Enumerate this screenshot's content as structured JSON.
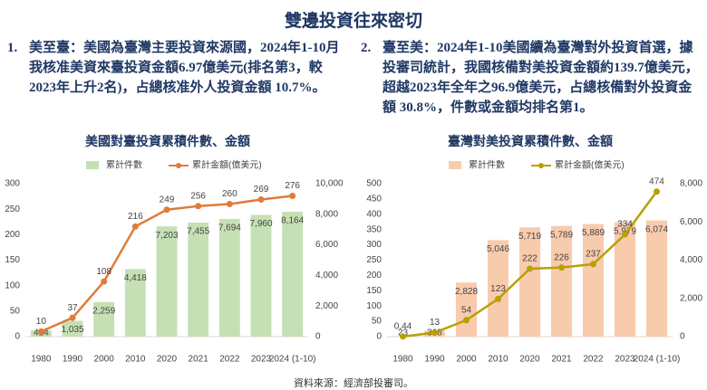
{
  "title": "雙邊投資往來密切",
  "paragraphs": [
    {
      "number": "1.",
      "text": "美至臺：美國為臺灣主要投資來源國，2024年1-10月我核准美資來臺投資金額6.97億美元(排名第3，較2023年上升2名)，占總核准外人投資金額 10.7%。"
    },
    {
      "number": "2.",
      "text": "臺至美：2024年1-10美國續為臺灣對外投資首選，據投審司統計，我國核備對美投資金額約139.7億美元，超越2023年全年之96.9億美元，占總核備對外投資金額 30.8%，件數或金額均排名第1。"
    }
  ],
  "source": "資料來源：經濟部投審司。",
  "chart_data": [
    {
      "type": "bar_line",
      "title": "美國對臺投資累積件數、金額",
      "categories": [
        "1980",
        "1990",
        "2000",
        "2010",
        "2020",
        "2021",
        "2022",
        "2023",
        "2024 (1-10)"
      ],
      "series": [
        {
          "name": "累計件數",
          "type": "bar",
          "axis": "y2",
          "color": "#c5e0b4",
          "values": [
            414,
            1035,
            2259,
            4418,
            7203,
            7455,
            7694,
            7960,
            8164
          ],
          "value_labels": [
            "414",
            "1,035",
            "2,259",
            "4,418",
            "7,203",
            "7,455",
            "7,694",
            "7,960",
            "8,164"
          ]
        },
        {
          "name": "累計金額(億美元)",
          "type": "line",
          "axis": "y",
          "color": "#e07b39",
          "values": [
            10,
            37,
            108,
            216,
            249,
            256,
            260,
            269,
            276
          ]
        }
      ],
      "ylim": [
        0,
        300
      ],
      "yticks": [
        0,
        50,
        100,
        150,
        200,
        250,
        300
      ],
      "y2lim": [
        0,
        10000
      ],
      "y2ticks": [
        0,
        {
          "value": 2000,
          "label": "2,000"
        },
        {
          "value": 4000,
          "label": "4,000"
        },
        {
          "value": 6000,
          "label": "6,000"
        },
        {
          "value": 8000,
          "label": "8,000"
        },
        {
          "value": 10000,
          "label": "10,000"
        }
      ]
    },
    {
      "type": "bar_line",
      "title": "臺灣對美投資累積件數、金額",
      "categories": [
        "1980",
        "1990",
        "2000",
        "2010",
        "2020",
        "2021",
        "2022",
        "2023",
        "2024 (1-10)"
      ],
      "series": [
        {
          "name": "累計件數",
          "type": "bar",
          "axis": "y2",
          "color": "#f8cbad",
          "values": [
            23,
            308,
            2828,
            5046,
            5719,
            5789,
            5889,
            5979,
            6074
          ],
          "value_labels": [
            "23",
            "308",
            "2,828",
            "5,046",
            "5,719",
            "5,789",
            "5,889",
            "5,979",
            "6,074"
          ]
        },
        {
          "name": "累計金額(億美元)",
          "type": "line",
          "axis": "y",
          "color": "#b8a000",
          "values": [
            0.44,
            13,
            54,
            123,
            222,
            226,
            237,
            334,
            474
          ]
        }
      ],
      "ylim": [
        0,
        500
      ],
      "yticks": [
        0,
        50,
        100,
        150,
        200,
        250,
        300,
        350,
        400,
        450,
        500
      ],
      "y2lim": [
        0,
        8000
      ],
      "y2ticks": [
        0,
        {
          "value": 2000,
          "label": "2,000"
        },
        {
          "value": 4000,
          "label": "4,000"
        },
        {
          "value": 6000,
          "label": "6,000"
        },
        {
          "value": 8000,
          "label": "8,000"
        }
      ]
    }
  ]
}
